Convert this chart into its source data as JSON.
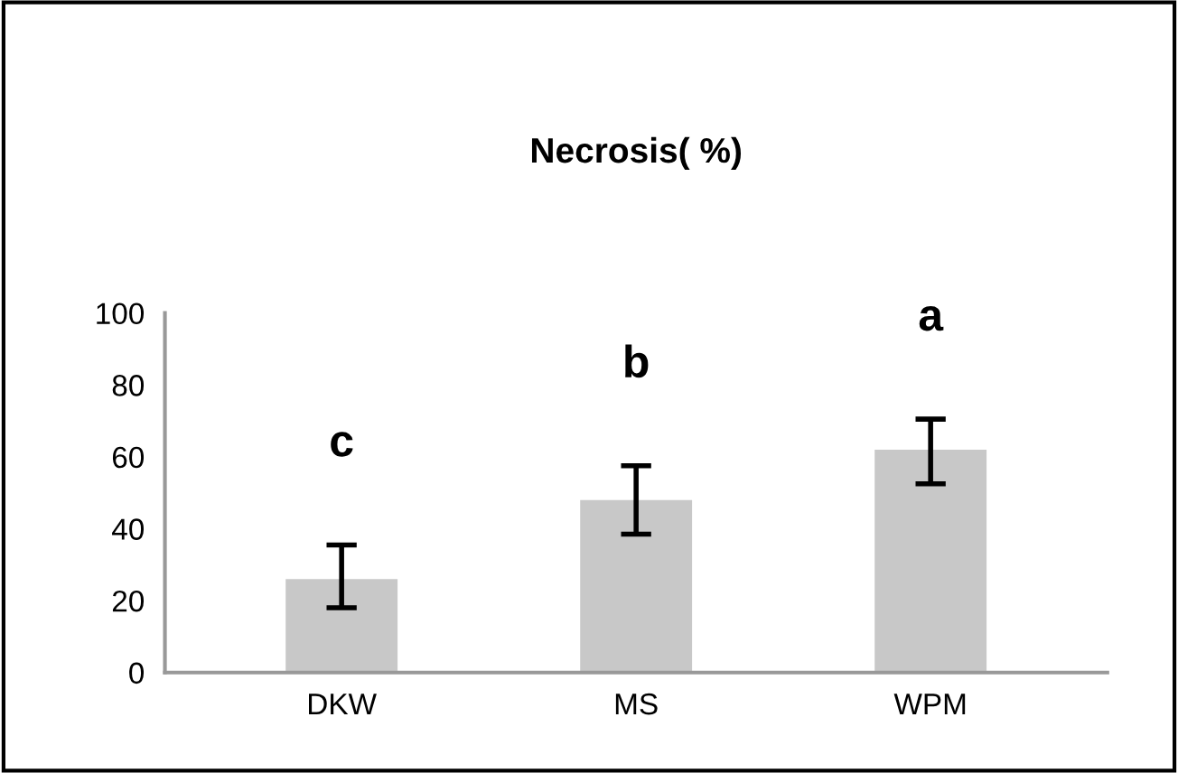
{
  "chart_data": {
    "type": "bar",
    "title": "Necrosis( %)",
    "categories": [
      "DKW",
      "MS",
      "WPM"
    ],
    "values": [
      26,
      48,
      62
    ],
    "errors": [
      [
        18,
        35.5
      ],
      [
        38.5,
        57.5
      ],
      [
        52.5,
        70.5
      ]
    ],
    "color": "#c8c8c8",
    "ylim": [
      0,
      100
    ],
    "yticks": [
      0,
      20,
      40,
      60,
      80,
      100
    ],
    "grid": false,
    "annotations": [
      "c",
      "b",
      "a"
    ]
  }
}
